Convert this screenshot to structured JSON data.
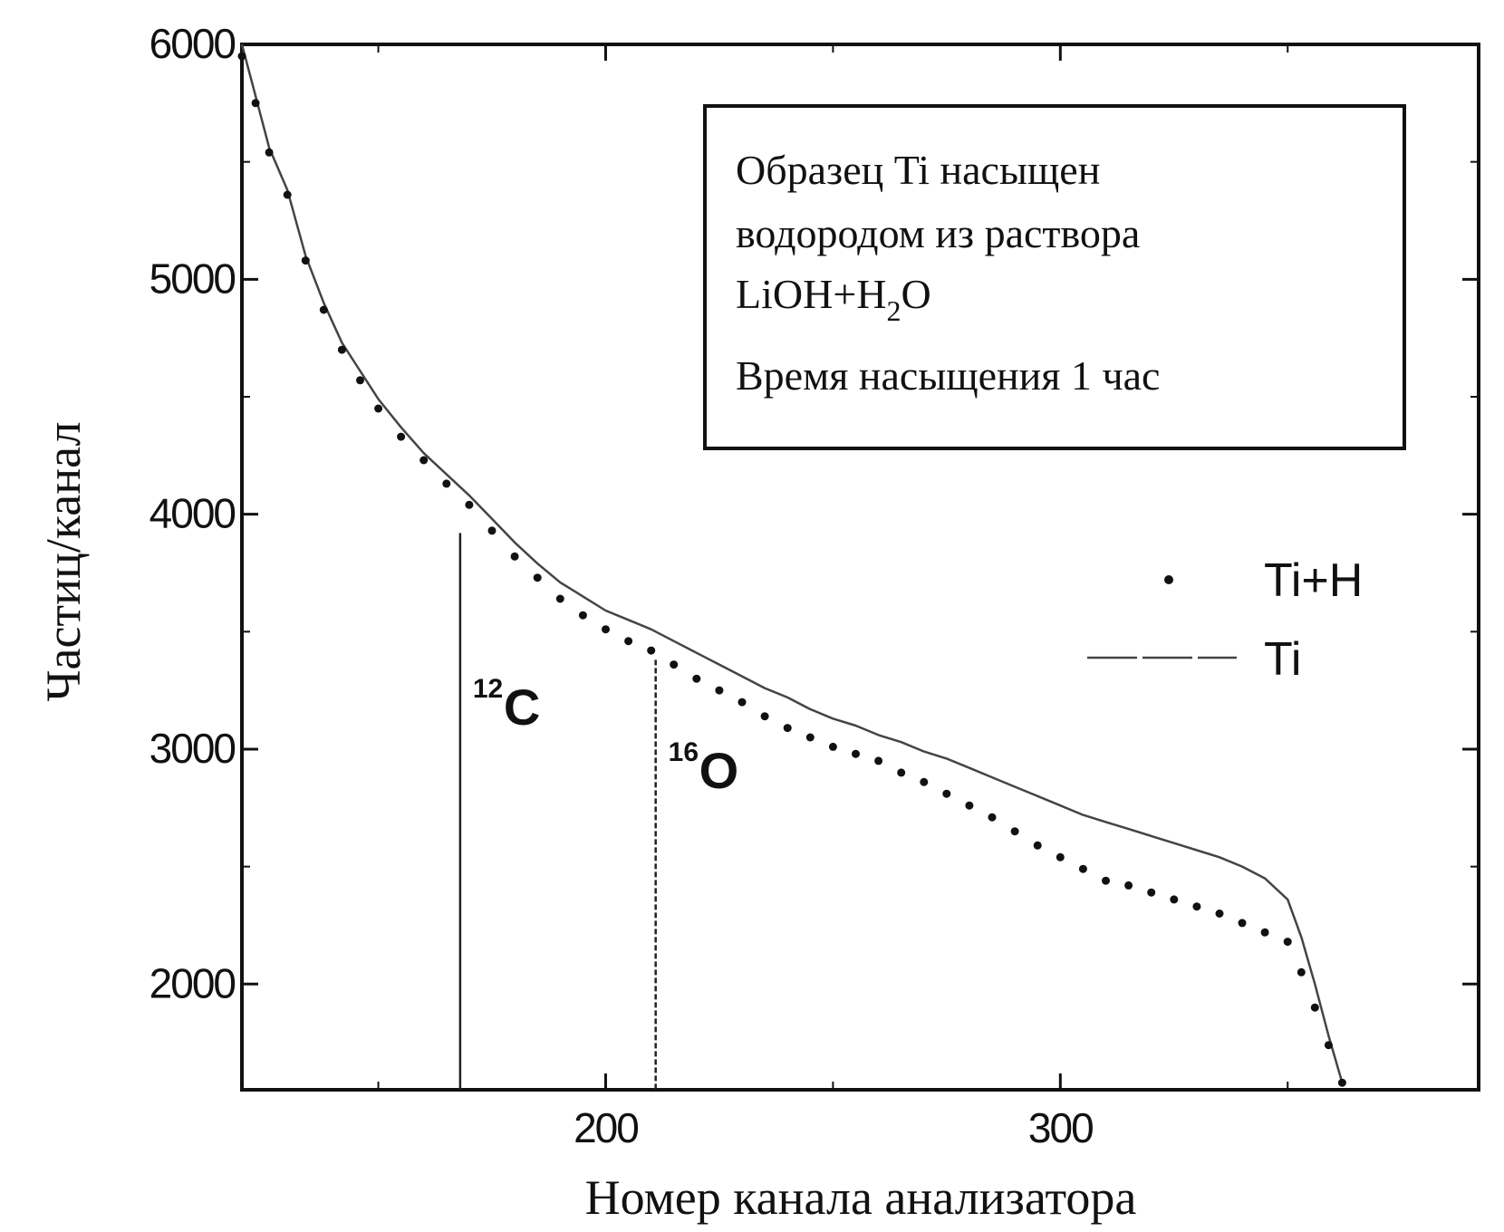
{
  "chart_data": {
    "type": "scatter",
    "xlabel": "Номер канала анализатора",
    "ylabel": "Частиц/канал",
    "xlim": [
      120,
      392
    ],
    "ylim": [
      1550,
      6000
    ],
    "x_ticks": [
      200,
      300
    ],
    "y_ticks": [
      2000,
      3000,
      4000,
      5000,
      6000
    ],
    "x_tick_labels": [
      "200",
      "300"
    ],
    "y_tick_labels": [
      "2000",
      "3000",
      "4000",
      "5000",
      "6000"
    ],
    "annotation": {
      "line1": "Образец Ti насыщен",
      "line2": "водородом из раствора",
      "line3_main": "LiOH+H",
      "line3_sub": "2",
      "line3_end": "O",
      "line4": "Время насыщения 1 час"
    },
    "peaks": [
      {
        "mass": "12",
        "element": "C",
        "x": 168,
        "y": 3920
      },
      {
        "mass": "16",
        "element": "O",
        "x": 211,
        "y": 3380
      }
    ],
    "series": [
      {
        "name": "Ti+H",
        "style": "dots",
        "color": "#111111",
        "x": [
          120,
          123,
          126,
          130,
          134,
          138,
          142,
          146,
          150,
          155,
          160,
          165,
          170,
          175,
          180,
          185,
          190,
          195,
          200,
          205,
          210,
          215,
          220,
          225,
          230,
          235,
          240,
          245,
          250,
          255,
          260,
          265,
          270,
          275,
          280,
          285,
          290,
          295,
          300,
          305,
          310,
          315,
          320,
          325,
          330,
          335,
          340,
          345,
          350,
          353,
          356,
          359,
          362
        ],
        "y": [
          5950,
          5750,
          5540,
          5360,
          5080,
          4870,
          4700,
          4570,
          4450,
          4330,
          4230,
          4130,
          4040,
          3930,
          3820,
          3730,
          3640,
          3570,
          3510,
          3460,
          3420,
          3360,
          3300,
          3250,
          3200,
          3140,
          3090,
          3050,
          3010,
          2980,
          2950,
          2900,
          2860,
          2810,
          2760,
          2710,
          2650,
          2590,
          2540,
          2490,
          2440,
          2420,
          2390,
          2360,
          2330,
          2300,
          2260,
          2220,
          2180,
          2050,
          1900,
          1740,
          1580
        ]
      },
      {
        "name": "Ti",
        "style": "line",
        "color": "#444444",
        "x": [
          120,
          123,
          126,
          130,
          134,
          138,
          142,
          146,
          150,
          155,
          160,
          165,
          170,
          175,
          180,
          185,
          190,
          195,
          200,
          205,
          210,
          215,
          220,
          225,
          230,
          235,
          240,
          245,
          250,
          255,
          260,
          265,
          270,
          275,
          280,
          285,
          290,
          295,
          300,
          305,
          310,
          315,
          320,
          325,
          330,
          335,
          340,
          345,
          350,
          353,
          356,
          359,
          362
        ],
        "y": [
          6000,
          5780,
          5560,
          5380,
          5100,
          4900,
          4730,
          4610,
          4490,
          4370,
          4260,
          4170,
          4080,
          3980,
          3880,
          3790,
          3710,
          3650,
          3590,
          3550,
          3510,
          3460,
          3410,
          3360,
          3310,
          3260,
          3220,
          3170,
          3130,
          3100,
          3060,
          3030,
          2990,
          2960,
          2920,
          2880,
          2840,
          2800,
          2760,
          2720,
          2690,
          2660,
          2630,
          2600,
          2570,
          2540,
          2500,
          2450,
          2360,
          2200,
          2000,
          1780,
          1580
        ]
      }
    ]
  }
}
